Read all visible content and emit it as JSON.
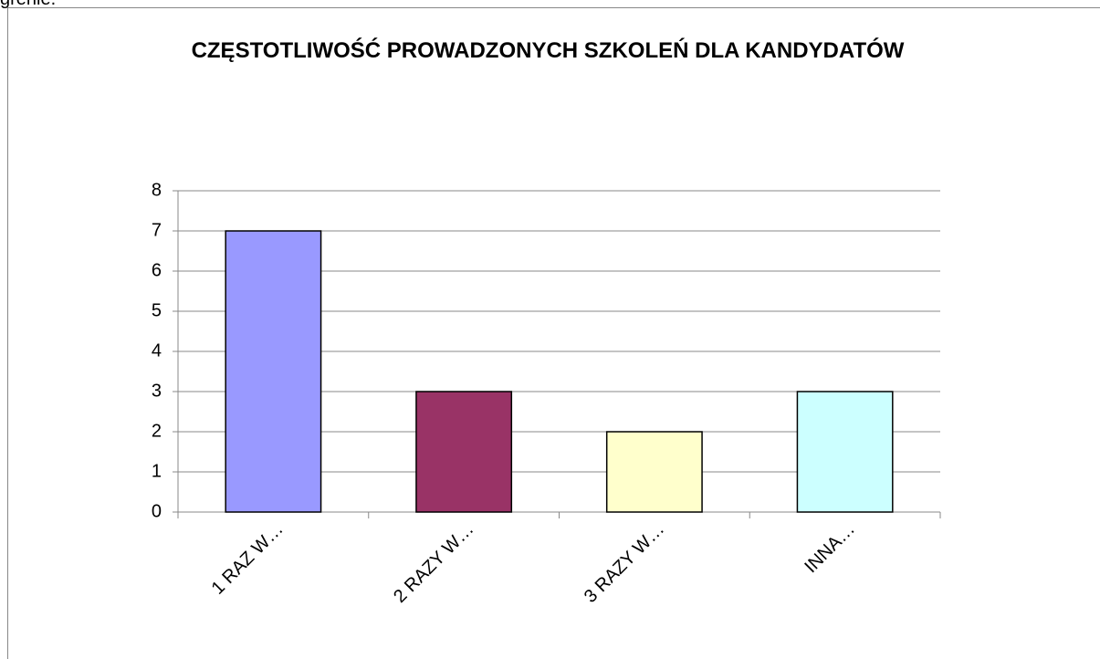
{
  "page_text": "grenie.",
  "chart_data": {
    "type": "bar",
    "title": "CZĘSTOTLIWOŚĆ PROWADZONYCH SZKOLEŃ DLA KANDYDATÓW",
    "categories": [
      "1 RAZ W…",
      "2 RAZY W…",
      "3 RAZY W…",
      "INNA…"
    ],
    "values": [
      7,
      3,
      2,
      3
    ],
    "colors": [
      "#9999ff",
      "#993366",
      "#ffffcc",
      "#ccffff"
    ],
    "ylim": [
      0,
      8
    ],
    "yticks": [
      0,
      1,
      2,
      3,
      4,
      5,
      6,
      7,
      8
    ],
    "grid": true
  }
}
